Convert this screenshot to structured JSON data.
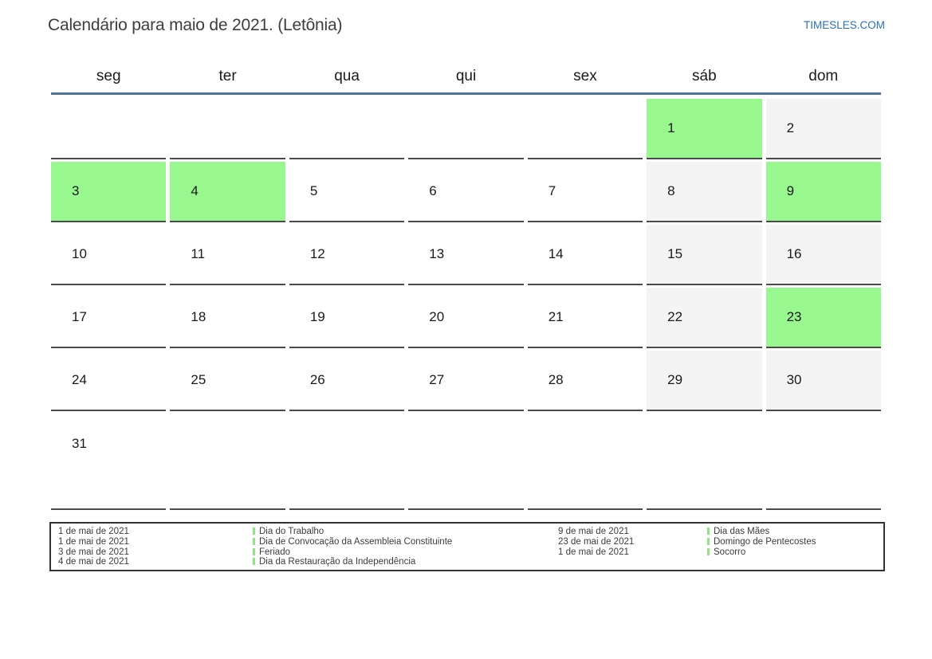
{
  "title": "Calendário para maio de 2021. (Letônia)",
  "site": "TIMESLES.COM",
  "weekdays": [
    "seg",
    "ter",
    "qua",
    "qui",
    "sex",
    "sáb",
    "dom"
  ],
  "weeks": [
    [
      {
        "day": "",
        "type": "empty"
      },
      {
        "day": "",
        "type": "empty"
      },
      {
        "day": "",
        "type": "empty"
      },
      {
        "day": "",
        "type": "empty"
      },
      {
        "day": "",
        "type": "empty"
      },
      {
        "day": "1",
        "type": "holiday"
      },
      {
        "day": "2",
        "type": "weekend"
      }
    ],
    [
      {
        "day": "3",
        "type": "holiday"
      },
      {
        "day": "4",
        "type": "holiday"
      },
      {
        "day": "5",
        "type": "workday"
      },
      {
        "day": "6",
        "type": "workday"
      },
      {
        "day": "7",
        "type": "workday"
      },
      {
        "day": "8",
        "type": "weekend"
      },
      {
        "day": "9",
        "type": "holiday"
      }
    ],
    [
      {
        "day": "10",
        "type": "workday"
      },
      {
        "day": "11",
        "type": "workday"
      },
      {
        "day": "12",
        "type": "workday"
      },
      {
        "day": "13",
        "type": "workday"
      },
      {
        "day": "14",
        "type": "workday"
      },
      {
        "day": "15",
        "type": "weekend"
      },
      {
        "day": "16",
        "type": "weekend"
      }
    ],
    [
      {
        "day": "17",
        "type": "workday"
      },
      {
        "day": "18",
        "type": "workday"
      },
      {
        "day": "19",
        "type": "workday"
      },
      {
        "day": "20",
        "type": "workday"
      },
      {
        "day": "21",
        "type": "workday"
      },
      {
        "day": "22",
        "type": "weekend"
      },
      {
        "day": "23",
        "type": "holiday"
      }
    ],
    [
      {
        "day": "24",
        "type": "workday"
      },
      {
        "day": "25",
        "type": "workday"
      },
      {
        "day": "26",
        "type": "workday"
      },
      {
        "day": "27",
        "type": "workday"
      },
      {
        "day": "28",
        "type": "workday"
      },
      {
        "day": "29",
        "type": "weekend"
      },
      {
        "day": "30",
        "type": "weekend"
      }
    ],
    [
      {
        "day": "31",
        "type": "workday"
      },
      {
        "day": "",
        "type": "empty"
      },
      {
        "day": "",
        "type": "empty"
      },
      {
        "day": "",
        "type": "empty"
      },
      {
        "day": "",
        "type": "empty"
      },
      {
        "day": "",
        "type": "empty"
      },
      {
        "day": "",
        "type": "empty"
      }
    ]
  ],
  "legend": {
    "left": [
      {
        "date": "1 de mai de 2021",
        "name": "Dia do Trabalho"
      },
      {
        "date": "1 de mai de 2021",
        "name": "Dia de Convocação da Assembleia Constituinte"
      },
      {
        "date": "3 de mai de 2021",
        "name": "Feriado"
      },
      {
        "date": "4 de mai de 2021",
        "name": "Dia da Restauração da Independência"
      }
    ],
    "right": [
      {
        "date": "9 de mai de 2021",
        "name": "Dia das Mães"
      },
      {
        "date": "23 de mai de 2021",
        "name": "Domingo de Pentecostes"
      },
      {
        "date": "1 de mai de 2021",
        "name": "Socorro"
      }
    ]
  },
  "colors": {
    "holiday_green": "#98f78f",
    "weekend_gray": "#f4f4f4",
    "divider_blue": "#4f719b",
    "cell_border": "#4a4a4a",
    "link_blue": "#2d6fb7",
    "legend_marker": "#8ee582"
  }
}
